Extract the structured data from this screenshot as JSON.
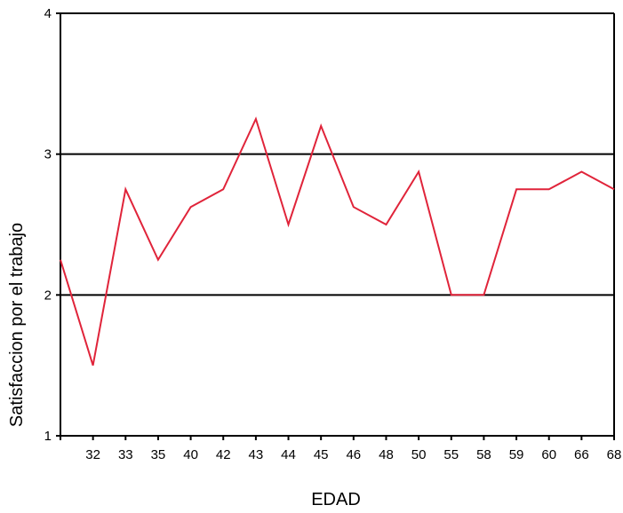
{
  "chart_data": {
    "type": "line",
    "title": "",
    "xlabel": "EDAD",
    "ylabel": "Satisfaccion por el trabajo",
    "categories": [
      "",
      "32",
      "33",
      "35",
      "40",
      "42",
      "43",
      "44",
      "45",
      "46",
      "48",
      "50",
      "55",
      "58",
      "59",
      "60",
      "66",
      "68"
    ],
    "ylim": [
      1,
      4
    ],
    "yticks": [
      "1",
      "2",
      "3",
      "4"
    ],
    "gridlines_y": [
      2,
      3
    ],
    "series": [
      {
        "values": [
          2.25,
          1.5,
          2.75,
          2.25,
          2.625,
          2.75,
          3.25,
          2.5,
          3.2,
          2.625,
          2.5,
          2.875,
          2.0,
          2.0,
          2.75,
          2.75,
          2.875,
          2.75
        ],
        "color": "#e0243a"
      }
    ],
    "colors": {
      "line": "#e0243a",
      "axis": "#000000",
      "grid": "#000000"
    }
  }
}
